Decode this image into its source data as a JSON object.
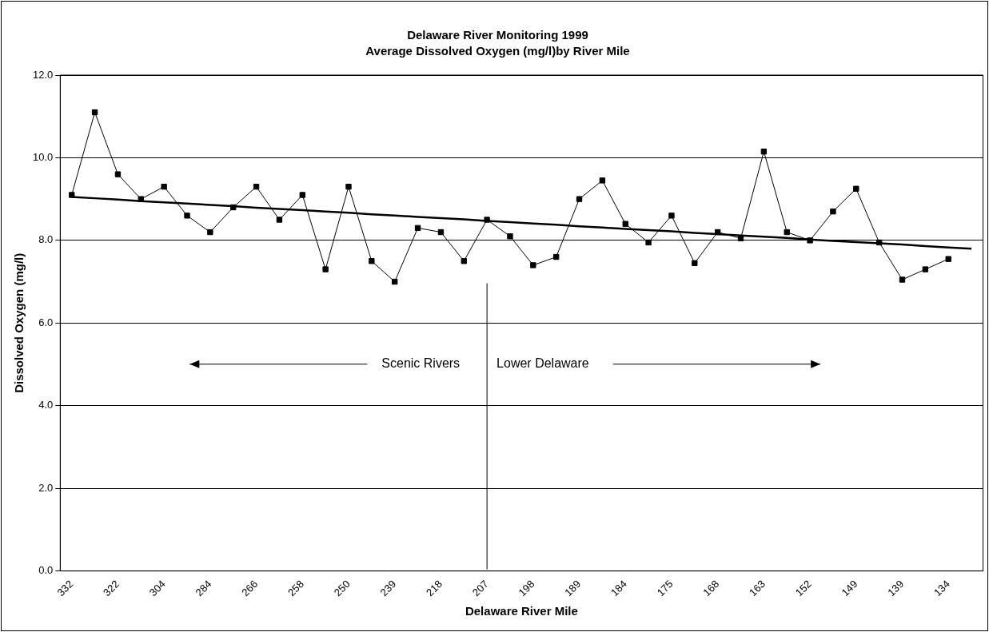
{
  "chart_data": {
    "type": "line",
    "title": "Delaware River Monitoring 1999",
    "subtitle": "Average Dissolved Oxygen (mg/l)by River Mile",
    "xlabel": "Delaware River Mile",
    "ylabel": "Dissolved Oxygen (mg/l)",
    "categories": [
      "332",
      null,
      "322",
      null,
      "304",
      null,
      "284",
      null,
      "266",
      null,
      "258",
      null,
      "250",
      null,
      "239",
      null,
      "218",
      null,
      "207",
      null,
      "198",
      null,
      "189",
      null,
      "184",
      null,
      "175",
      null,
      "168",
      null,
      "163",
      null,
      "152",
      null,
      "149",
      null,
      "139",
      null,
      "134",
      null
    ],
    "series": [
      {
        "color": "#000000",
        "marker": "square",
        "values": [
          9.1,
          11.1,
          9.6,
          9.0,
          9.3,
          8.6,
          8.2,
          8.8,
          9.3,
          8.5,
          9.1,
          7.3,
          9.3,
          7.5,
          7.0,
          8.3,
          8.2,
          7.5,
          8.5,
          8.1,
          7.4,
          7.6,
          9.0,
          9.45,
          8.4,
          7.95,
          8.6,
          7.45,
          8.2,
          8.05,
          10.15,
          8.2,
          8.0,
          8.7,
          9.25,
          7.95,
          7.05,
          7.3,
          7.55,
          null
        ]
      },
      {
        "type": "line",
        "color": "#000000",
        "marker": "none",
        "values": [
          9.05,
          9.02,
          8.99,
          8.95,
          8.92,
          8.89,
          8.86,
          8.83,
          8.79,
          8.76,
          8.73,
          8.7,
          8.67,
          8.63,
          8.6,
          8.57,
          8.54,
          8.51,
          8.47,
          8.44,
          8.41,
          8.38,
          8.34,
          8.31,
          8.28,
          8.25,
          8.22,
          8.18,
          8.15,
          8.12,
          8.09,
          8.06,
          8.02,
          7.99,
          7.96,
          7.93,
          7.9,
          7.86,
          7.83,
          7.8
        ]
      }
    ],
    "ref_lines": [
      {
        "axis": "x",
        "value": "207",
        "color": "#000000"
      }
    ],
    "annotations": [
      "Scenic Rivers",
      "Lower Delaware"
    ],
    "ylim": [
      0,
      12
    ],
    "yticks": [
      {
        "value": 0,
        "label": "0.0"
      },
      {
        "value": 2,
        "label": "2.0"
      },
      {
        "value": 4,
        "label": "4.0"
      },
      {
        "value": 6,
        "label": "6.0"
      },
      {
        "value": 8,
        "label": "8.0"
      },
      {
        "value": 10,
        "label": "10.0"
      },
      {
        "value": 12,
        "label": "12.0"
      }
    ],
    "grid": "y",
    "legend": false
  }
}
